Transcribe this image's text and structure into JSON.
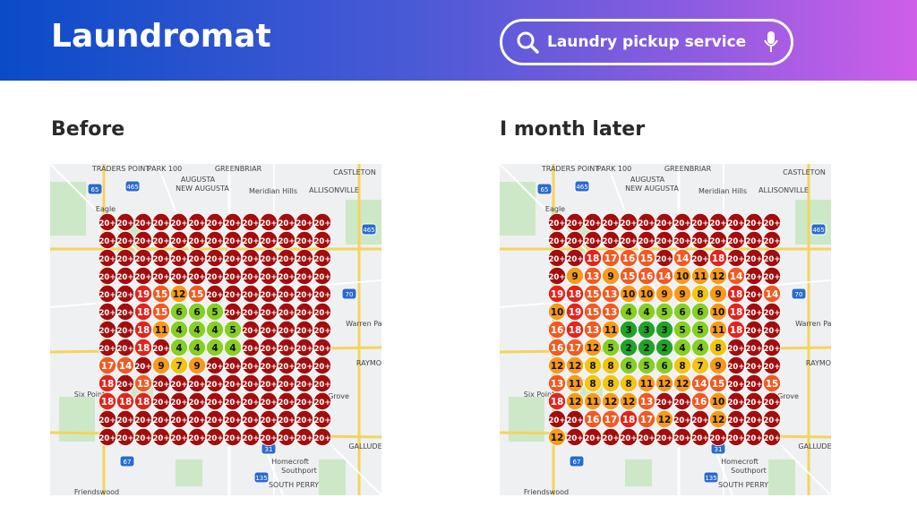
{
  "header": {
    "title": "Laundromat",
    "search": "Laundry pickup service"
  },
  "panels": [
    {
      "title": "Before",
      "grid": [
        [
          "20+",
          "20+",
          "20+",
          "20+",
          "20+",
          "20+",
          "20+",
          "20+",
          "20+",
          "20+",
          "20+",
          "20+",
          "20+"
        ],
        [
          "20+",
          "20+",
          "20+",
          "20+",
          "20+",
          "20+",
          "20+",
          "20+",
          "20+",
          "20+",
          "20+",
          "20+",
          "20+"
        ],
        [
          "20+",
          "20+",
          "20+",
          "20+",
          "20+",
          "20+",
          "20+",
          "20+",
          "20+",
          "20+",
          "20+",
          "20+",
          "20+"
        ],
        [
          "20+",
          "20+",
          "20+",
          "20+",
          "20+",
          "20+",
          "20+",
          "20+",
          "20+",
          "20+",
          "20+",
          "20+",
          "20+"
        ],
        [
          "20+",
          "20+",
          19,
          15,
          12,
          15,
          "20+",
          "20+",
          "20+",
          "20+",
          "20+",
          "20+",
          "20+"
        ],
        [
          "20+",
          "20+",
          18,
          15,
          6,
          6,
          5,
          "20+",
          "20+",
          "20+",
          "20+",
          "20+",
          "20+"
        ],
        [
          "20+",
          "20+",
          18,
          11,
          4,
          4,
          4,
          5,
          "20+",
          "20+",
          "20+",
          "20+",
          "20+"
        ],
        [
          "20+",
          "20+",
          18,
          "20+",
          4,
          4,
          4,
          4,
          "20+",
          "20+",
          "20+",
          "20+",
          "20+"
        ],
        [
          17,
          14,
          "20+",
          9,
          7,
          9,
          "20+",
          "20+",
          "20+",
          "20+",
          "20+",
          "20+",
          "20+"
        ],
        [
          18,
          "20+",
          13,
          "20+",
          "20+",
          "20+",
          "20+",
          "20+",
          "20+",
          "20+",
          "20+",
          "20+",
          "20+"
        ],
        [
          18,
          18,
          18,
          "20+",
          "20+",
          "20+",
          "20+",
          "20+",
          "20+",
          "20+",
          "20+",
          "20+",
          "20+"
        ],
        [
          "20+",
          "20+",
          "20+",
          "20+",
          "20+",
          "20+",
          "20+",
          "20+",
          "20+",
          "20+",
          "20+",
          "20+",
          "20+"
        ],
        [
          "20+",
          "20+",
          "20+",
          "20+",
          "20+",
          "20+",
          "20+",
          "20+",
          "20+",
          "20+",
          "20+",
          "20+",
          "20+"
        ]
      ]
    },
    {
      "title": "I month later",
      "grid": [
        [
          "20+",
          "20+",
          "20+",
          "20+",
          "20+",
          "20+",
          "20+",
          "20+",
          "20+",
          "20+",
          "20+",
          "20+",
          "20+"
        ],
        [
          "20+",
          "20+",
          "20+",
          "20+",
          "20+",
          "20+",
          "20+",
          "20+",
          "20+",
          "20+",
          "20+",
          "20+",
          "20+"
        ],
        [
          "20+",
          "20+",
          18,
          17,
          16,
          15,
          "20+",
          14,
          "20+",
          18,
          "20+",
          "20+",
          "20+"
        ],
        [
          "20+",
          9,
          13,
          9,
          15,
          16,
          14,
          10,
          11,
          12,
          14,
          "20+",
          "20+"
        ],
        [
          19,
          18,
          15,
          13,
          10,
          10,
          9,
          9,
          8,
          9,
          18,
          "20+",
          14
        ],
        [
          10,
          19,
          15,
          13,
          4,
          4,
          5,
          6,
          6,
          10,
          18,
          "20+",
          "20+"
        ],
        [
          16,
          18,
          13,
          11,
          3,
          3,
          3,
          5,
          5,
          11,
          18,
          "20+",
          "20+"
        ],
        [
          16,
          17,
          12,
          5,
          2,
          2,
          2,
          4,
          4,
          8,
          "20+",
          "20+",
          "20+"
        ],
        [
          12,
          12,
          8,
          8,
          6,
          5,
          6,
          8,
          7,
          9,
          "20+",
          "20+",
          "20+"
        ],
        [
          13,
          11,
          8,
          8,
          8,
          11,
          12,
          12,
          14,
          15,
          "20+",
          "20+",
          15
        ],
        [
          18,
          12,
          11,
          12,
          12,
          13,
          "20+",
          "20+",
          16,
          10,
          "20+",
          "20+",
          "20+"
        ],
        [
          "20+",
          "20+",
          16,
          17,
          18,
          17,
          12,
          "20+",
          "20+",
          12,
          "20+",
          "20+",
          "20+"
        ],
        [
          12,
          "20+",
          "20+",
          "20+",
          "20+",
          "20+",
          "20+",
          "20+",
          "20+",
          "20+",
          "20+",
          "20+",
          "20+"
        ]
      ]
    }
  ],
  "map_labels": [
    "TRADERS POINT",
    "PARK 100",
    "GREENBRIAR",
    "CASTLETON",
    "AUGUSTA",
    "NEW AUGUSTA",
    "Meridian Hills",
    "ALLISONVILLE",
    "Eagle",
    "Warren Par",
    "RAYMO",
    "Six Point",
    "Grove",
    "GALLUDE",
    "Homecroft",
    "Southport",
    "SOUTH PERRY",
    "Friendswood"
  ],
  "shields": [
    "465",
    "65",
    "465",
    "70",
    "67",
    "31",
    "135"
  ]
}
